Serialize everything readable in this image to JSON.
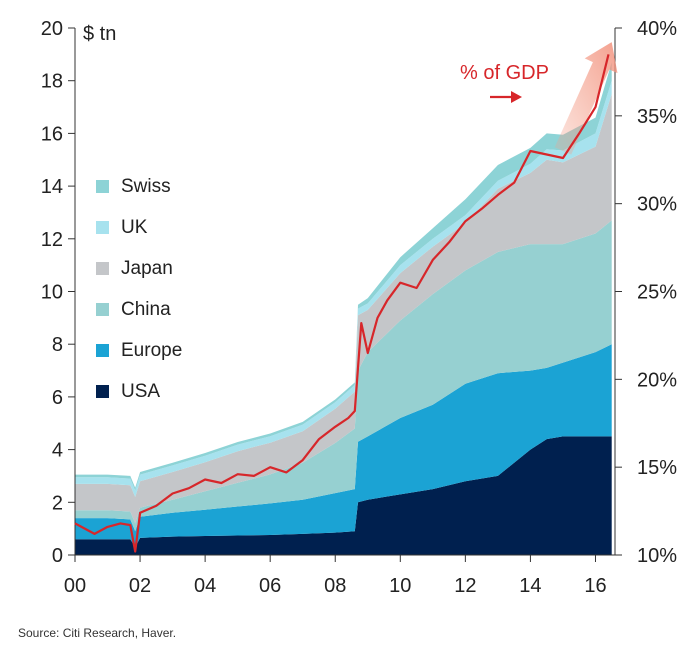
{
  "chart_data": {
    "type": "area",
    "left_axis_unit": "$ tn",
    "right_axis_unit": "% of GDP",
    "x_ticks": [
      "00",
      "02",
      "04",
      "06",
      "08",
      "10",
      "12",
      "14",
      "16"
    ],
    "xlim": [
      2000,
      2016.6
    ],
    "ylim": [
      0,
      20
    ],
    "y_ticks": [
      0,
      2,
      4,
      6,
      8,
      10,
      12,
      14,
      16,
      18,
      20
    ],
    "y2lim": [
      10,
      40
    ],
    "y2_ticks": [
      "10%",
      "15%",
      "20%",
      "25%",
      "30%",
      "35%",
      "40%"
    ],
    "annotation": "% of GDP",
    "legend": [
      "Swiss",
      "UK",
      "Japan",
      "China",
      "Europe",
      "USA"
    ],
    "source": "Source: Citi Research, Haver.",
    "colors": {
      "USA": "#00204f",
      "Europe": "#1ba3d4",
      "China": "#96d0d1",
      "Japan": "#c4c6c9",
      "UK": "#a7e2ee",
      "Swiss": "#8dd3d6",
      "line": "#d7262a"
    },
    "x": [
      2000,
      2001,
      2001.7,
      2001.85,
      2002,
      2003,
      2004,
      2005,
      2006,
      2007,
      2008,
      2008.6,
      2008.7,
      2009,
      2010,
      2011,
      2012,
      2013,
      2014,
      2014.5,
      2015,
      2016,
      2016.5
    ],
    "series": [
      {
        "name": "USA",
        "values": [
          0.6,
          0.6,
          0.6,
          0.3,
          0.65,
          0.7,
          0.72,
          0.74,
          0.76,
          0.8,
          0.85,
          0.9,
          2.0,
          2.1,
          2.3,
          2.5,
          2.8,
          3.0,
          4.0,
          4.4,
          4.5,
          4.5,
          4.5
        ]
      },
      {
        "name": "Europe",
        "values": [
          0.8,
          0.8,
          0.75,
          0.6,
          0.8,
          0.9,
          1.0,
          1.1,
          1.2,
          1.3,
          1.5,
          1.6,
          2.3,
          2.4,
          2.9,
          3.2,
          3.7,
          3.9,
          3.0,
          2.7,
          2.8,
          3.2,
          3.5
        ]
      },
      {
        "name": "China",
        "values": [
          0.3,
          0.3,
          0.3,
          0.3,
          0.35,
          0.5,
          0.7,
          0.9,
          1.1,
          1.4,
          1.9,
          2.3,
          2.7,
          3.2,
          3.7,
          4.2,
          4.3,
          4.6,
          4.8,
          4.7,
          4.5,
          4.5,
          4.7
        ]
      },
      {
        "name": "Japan",
        "values": [
          1.0,
          1.0,
          1.0,
          1.0,
          1.0,
          1.05,
          1.1,
          1.2,
          1.2,
          1.2,
          1.3,
          1.4,
          2.1,
          1.6,
          1.8,
          1.8,
          1.8,
          2.4,
          2.7,
          3.2,
          3.1,
          3.3,
          4.8
        ]
      },
      {
        "name": "UK",
        "values": [
          0.25,
          0.25,
          0.25,
          0.25,
          0.25,
          0.25,
          0.25,
          0.25,
          0.25,
          0.25,
          0.25,
          0.25,
          0.25,
          0.25,
          0.3,
          0.3,
          0.3,
          0.3,
          0.35,
          0.4,
          0.45,
          0.5,
          0.5
        ]
      },
      {
        "name": "Swiss",
        "values": [
          0.1,
          0.1,
          0.1,
          0.1,
          0.1,
          0.1,
          0.1,
          0.1,
          0.1,
          0.1,
          0.1,
          0.1,
          0.15,
          0.2,
          0.3,
          0.4,
          0.6,
          0.6,
          0.6,
          0.6,
          0.6,
          0.6,
          0.7
        ]
      }
    ],
    "line": {
      "name": "% of GDP",
      "x": [
        2000,
        2000.3,
        2000.6,
        2001,
        2001.4,
        2001.7,
        2001.85,
        2002,
        2002.5,
        2003,
        2003.5,
        2004,
        2004.5,
        2005,
        2005.5,
        2006,
        2006.5,
        2007,
        2007.5,
        2008,
        2008.4,
        2008.6,
        2008.8,
        2009,
        2009.3,
        2009.6,
        2010,
        2010.5,
        2011,
        2011.5,
        2012,
        2012.5,
        2013,
        2013.5,
        2014,
        2014.5,
        2015,
        2015.5,
        2016,
        2016.4
      ],
      "values": [
        11.8,
        11.5,
        11.2,
        11.6,
        11.8,
        11.7,
        10.2,
        12.4,
        12.8,
        13.5,
        13.8,
        14.3,
        14.1,
        14.6,
        14.5,
        15.0,
        14.7,
        15.4,
        16.6,
        17.3,
        17.8,
        18.2,
        23.2,
        21.5,
        23.5,
        24.5,
        25.5,
        25.2,
        26.8,
        27.8,
        29.0,
        29.7,
        30.5,
        31.2,
        33.0,
        32.8,
        32.6,
        34.0,
        35.5,
        38.5
      ]
    }
  }
}
